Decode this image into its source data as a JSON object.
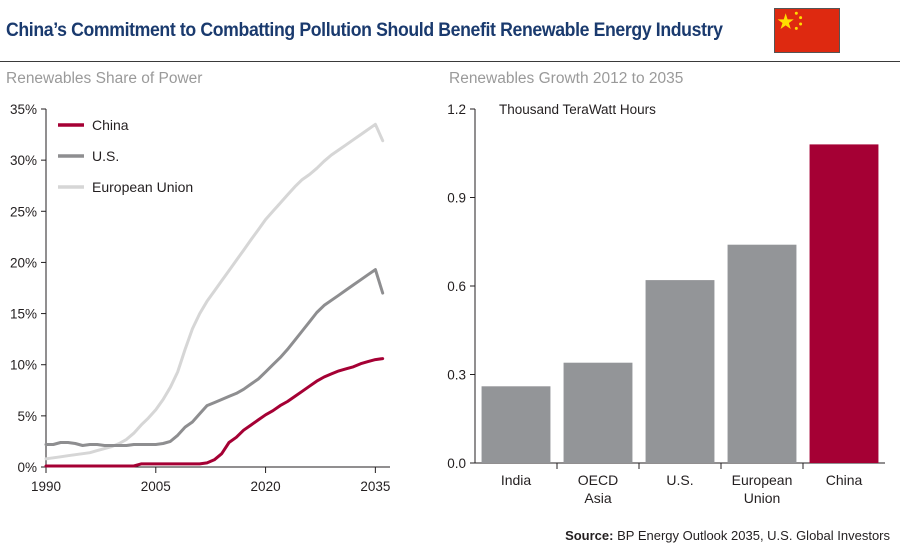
{
  "header": {
    "title": "China’s Commitment to Combatting Pollution Should Benefit Renewable Energy Industry",
    "flag_icon": "china-flag-icon"
  },
  "source": {
    "label": "Source:",
    "text": "BP Energy Outlook 2035, U.S. Global Investors"
  },
  "chart_data": [
    {
      "type": "line",
      "title": "Renewables Share of Power",
      "xlabel": "",
      "ylabel": "",
      "xlim": [
        1990,
        2037
      ],
      "ylim": [
        0,
        35
      ],
      "xticks": [
        1990,
        2005,
        2020,
        2035
      ],
      "xtick_labels": [
        "1990",
        "2005",
        "2020",
        "2035"
      ],
      "yticks": [
        0,
        5,
        10,
        15,
        20,
        25,
        30,
        35
      ],
      "ytick_labels": [
        "0%",
        "5%",
        "10%",
        "15%",
        "20%",
        "25%",
        "30%",
        "35%"
      ],
      "grid": false,
      "legend": "top-left",
      "series": [
        {
          "name": "China",
          "color": "#a50034",
          "x": [
            1990,
            1991,
            1992,
            1993,
            1994,
            1995,
            1996,
            1997,
            1998,
            1999,
            2000,
            2001,
            2002,
            2003,
            2004,
            2005,
            2006,
            2007,
            2008,
            2009,
            2010,
            2011,
            2012,
            2013,
            2014,
            2015,
            2016,
            2017,
            2018,
            2019,
            2020,
            2021,
            2022,
            2023,
            2024,
            2025,
            2026,
            2027,
            2028,
            2029,
            2030,
            2031,
            2032,
            2033,
            2034,
            2035,
            2036
          ],
          "y": [
            0.1,
            0.1,
            0.1,
            0.1,
            0.1,
            0.1,
            0.1,
            0.1,
            0.1,
            0.1,
            0.1,
            0.1,
            0.1,
            0.3,
            0.3,
            0.3,
            0.3,
            0.3,
            0.3,
            0.3,
            0.3,
            0.3,
            0.4,
            0.7,
            1.3,
            2.4,
            2.9,
            3.6,
            4.1,
            4.6,
            5.1,
            5.5,
            6.0,
            6.4,
            6.9,
            7.4,
            7.9,
            8.4,
            8.8,
            9.1,
            9.4,
            9.6,
            9.8,
            10.1,
            10.3,
            10.5,
            10.6
          ]
        },
        {
          "name": "U.S.",
          "color": "#8e8e90",
          "x": [
            1990,
            1991,
            1992,
            1993,
            1994,
            1995,
            1996,
            1997,
            1998,
            1999,
            2000,
            2001,
            2002,
            2003,
            2004,
            2005,
            2006,
            2007,
            2008,
            2009,
            2010,
            2011,
            2012,
            2013,
            2014,
            2015,
            2016,
            2017,
            2018,
            2019,
            2020,
            2021,
            2022,
            2023,
            2024,
            2025,
            2026,
            2027,
            2028,
            2029,
            2030,
            2031,
            2032,
            2033,
            2034,
            2035,
            2036
          ],
          "y": [
            2.2,
            2.2,
            2.4,
            2.4,
            2.3,
            2.1,
            2.2,
            2.2,
            2.1,
            2.1,
            2.1,
            2.1,
            2.2,
            2.2,
            2.2,
            2.2,
            2.3,
            2.5,
            3.1,
            3.9,
            4.4,
            5.2,
            6.0,
            6.3,
            6.6,
            6.9,
            7.2,
            7.6,
            8.1,
            8.6,
            9.3,
            10.0,
            10.7,
            11.5,
            12.4,
            13.3,
            14.2,
            15.1,
            15.8,
            16.3,
            16.8,
            17.3,
            17.8,
            18.3,
            18.8,
            19.3,
            17.0
          ]
        },
        {
          "name": "European Union",
          "color": "#d6d6d6",
          "x": [
            1990,
            1991,
            1992,
            1993,
            1994,
            1995,
            1996,
            1997,
            1998,
            1999,
            2000,
            2001,
            2002,
            2003,
            2004,
            2005,
            2006,
            2007,
            2008,
            2009,
            2010,
            2011,
            2012,
            2013,
            2014,
            2015,
            2016,
            2017,
            2018,
            2019,
            2020,
            2021,
            2022,
            2023,
            2024,
            2025,
            2026,
            2027,
            2028,
            2029,
            2030,
            2031,
            2032,
            2033,
            2034,
            2035,
            2036
          ],
          "y": [
            0.8,
            0.9,
            1.0,
            1.1,
            1.2,
            1.3,
            1.4,
            1.6,
            1.8,
            2.0,
            2.3,
            2.7,
            3.3,
            4.1,
            4.8,
            5.6,
            6.6,
            7.8,
            9.3,
            11.5,
            13.5,
            15.0,
            16.2,
            17.2,
            18.2,
            19.2,
            20.2,
            21.2,
            22.2,
            23.2,
            24.2,
            25.0,
            25.8,
            26.6,
            27.4,
            28.1,
            28.6,
            29.2,
            29.9,
            30.5,
            31.0,
            31.5,
            32.0,
            32.5,
            33.0,
            33.5,
            31.9
          ]
        }
      ]
    },
    {
      "type": "bar",
      "title": "Renewables Growth 2012 to 2035",
      "unit_label": "Thousand TeraWatt Hours",
      "xlabel": "",
      "ylabel": "",
      "ylim": [
        0,
        1.2
      ],
      "yticks": [
        0.0,
        0.3,
        0.6,
        0.9,
        1.2
      ],
      "ytick_labels": [
        "0.0",
        "0.3",
        "0.6",
        "0.9",
        "1.2"
      ],
      "grid": false,
      "categories": [
        [
          "India"
        ],
        [
          "OECD",
          "Asia"
        ],
        [
          "U.S."
        ],
        [
          "European",
          "Union"
        ],
        [
          "China"
        ]
      ],
      "values": [
        0.26,
        0.34,
        0.62,
        0.74,
        1.08
      ],
      "colors": [
        "#939598",
        "#939598",
        "#939598",
        "#939598",
        "#a50034"
      ]
    }
  ]
}
